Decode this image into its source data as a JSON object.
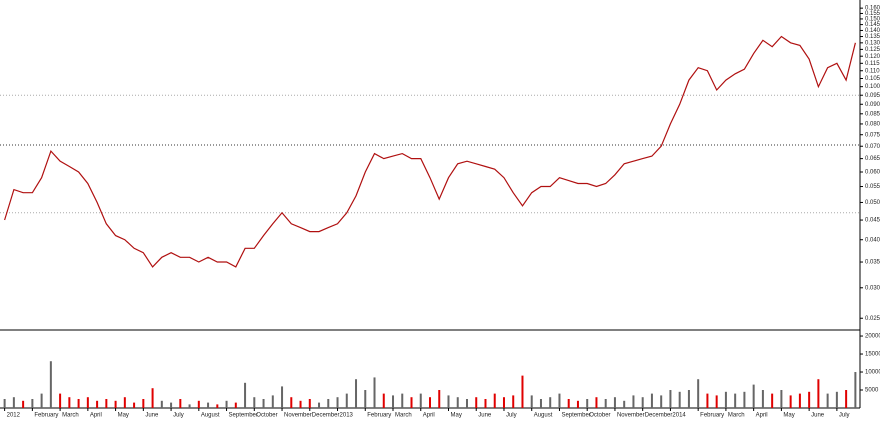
{
  "chart_data": {
    "type": "line",
    "log_scale": true,
    "color": "#b01010",
    "categories": [
      "2012",
      null,
      null,
      "February",
      null,
      null,
      "March",
      null,
      null,
      "April",
      null,
      null,
      "May",
      null,
      null,
      "June",
      null,
      null,
      "July",
      null,
      null,
      "August",
      null,
      null,
      "September",
      null,
      null,
      "October",
      null,
      null,
      "November",
      null,
      null,
      "December",
      null,
      null,
      "2013",
      null,
      null,
      "February",
      null,
      null,
      "March",
      null,
      null,
      "April",
      null,
      null,
      "May",
      null,
      null,
      "June",
      null,
      null,
      "July",
      null,
      null,
      "August",
      null,
      null,
      "September",
      null,
      null,
      "October",
      null,
      null,
      "November",
      null,
      null,
      "December",
      null,
      null,
      "2014",
      null,
      null,
      "February",
      null,
      null,
      "March",
      null,
      null,
      "April",
      null,
      null,
      "May",
      null,
      null,
      "June",
      null,
      null,
      "July",
      null,
      null
    ],
    "values": [
      0.045,
      0.054,
      0.053,
      0.053,
      0.058,
      0.068,
      0.064,
      0.062,
      0.06,
      0.056,
      0.05,
      0.044,
      0.041,
      0.04,
      0.038,
      0.037,
      0.034,
      0.036,
      0.037,
      0.036,
      0.036,
      0.035,
      0.036,
      0.035,
      0.035,
      0.034,
      0.038,
      0.038,
      0.041,
      0.044,
      0.047,
      0.044,
      0.043,
      0.042,
      0.042,
      0.043,
      0.044,
      0.047,
      0.052,
      0.06,
      0.067,
      0.065,
      0.066,
      0.067,
      0.065,
      0.065,
      0.058,
      0.051,
      0.058,
      0.063,
      0.064,
      0.063,
      0.062,
      0.061,
      0.058,
      0.053,
      0.049,
      0.053,
      0.055,
      0.055,
      0.058,
      0.057,
      0.056,
      0.056,
      0.055,
      0.056,
      0.059,
      0.063,
      0.064,
      0.065,
      0.066,
      0.07,
      0.08,
      0.09,
      0.104,
      0.112,
      0.11,
      0.098,
      0.104,
      0.108,
      0.111,
      0.122,
      0.132,
      0.127,
      0.135,
      0.13,
      0.128,
      0.118,
      0.1,
      0.112,
      0.115,
      0.104,
      0.13
    ],
    "ylim": [
      0.0233,
      0.168
    ],
    "yticks": [
      {
        "value": 0.16,
        "label": "0.160"
      },
      {
        "value": 0.155,
        "label": "0.155"
      },
      {
        "value": 0.15,
        "label": "0.150"
      },
      {
        "value": 0.145,
        "label": "0.145"
      },
      {
        "value": 0.14,
        "label": "0.140"
      },
      {
        "value": 0.135,
        "label": "0.135"
      },
      {
        "value": 0.13,
        "label": "0.130"
      },
      {
        "value": 0.125,
        "label": "0.125"
      },
      {
        "value": 0.12,
        "label": "0.120"
      },
      {
        "value": 0.115,
        "label": "0.115"
      },
      {
        "value": 0.11,
        "label": "0.110"
      },
      {
        "value": 0.105,
        "label": "0.105"
      },
      {
        "value": 0.1,
        "label": "0.100"
      },
      {
        "value": 0.095,
        "label": "0.095"
      },
      {
        "value": 0.09,
        "label": "0.090"
      },
      {
        "value": 0.085,
        "label": "0.085"
      },
      {
        "value": 0.08,
        "label": "0.080"
      },
      {
        "value": 0.075,
        "label": "0.075"
      },
      {
        "value": 0.07,
        "label": "0.070"
      },
      {
        "value": 0.065,
        "label": "0.065"
      },
      {
        "value": 0.06,
        "label": "0.060"
      },
      {
        "value": 0.055,
        "label": "0.055"
      },
      {
        "value": 0.05,
        "label": "0.050"
      },
      {
        "value": 0.045,
        "label": "0.045"
      },
      {
        "value": 0.04,
        "label": "0.040"
      },
      {
        "value": 0.035,
        "label": "0.035"
      },
      {
        "value": 0.03,
        "label": "0.030"
      },
      {
        "value": 0.025,
        "label": "0.025"
      }
    ],
    "reference_lines": [
      {
        "value": 0.0705,
        "color": "#333333"
      },
      {
        "value": 0.047,
        "color": "#aaaaaa"
      },
      {
        "value": 0.095,
        "color": "#aaaaaa"
      }
    ],
    "volume": {
      "values": [
        2500,
        3000,
        2000,
        2500,
        4000,
        13000,
        4000,
        3000,
        2500,
        3000,
        2000,
        2500,
        2000,
        3000,
        1500,
        2500,
        5500,
        2000,
        1500,
        2500,
        1000,
        2000,
        1500,
        1000,
        2000,
        1500,
        7000,
        3000,
        2500,
        3500,
        6000,
        3000,
        2000,
        2500,
        1500,
        2500,
        3000,
        4000,
        8000,
        5000,
        8500,
        4000,
        3500,
        4000,
        3000,
        4000,
        3000,
        5000,
        3500,
        3000,
        2500,
        3000,
        2500,
        4000,
        3000,
        3500,
        9000,
        3500,
        2500,
        3000,
        4000,
        2500,
        2000,
        2500,
        3000,
        2500,
        3000,
        2000,
        3500,
        3000,
        4000,
        3500,
        5000,
        4500,
        5000,
        8000,
        4000,
        3500,
        4500,
        4000,
        4500,
        6500,
        5000,
        4000,
        5000,
        3500,
        4000,
        4500,
        8000,
        4000,
        4500,
        5000,
        10000
      ],
      "ylim": [
        0,
        21400
      ],
      "yticks": [
        20000,
        15000,
        10000,
        5000
      ],
      "up_color": "#666666",
      "down_color": "#e00000"
    }
  }
}
